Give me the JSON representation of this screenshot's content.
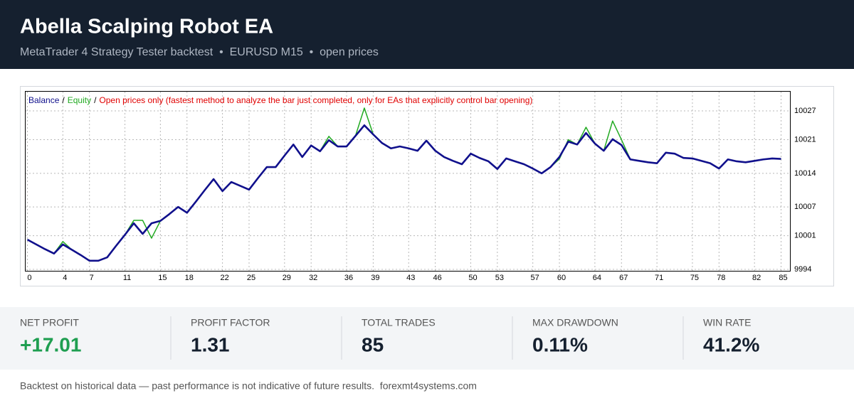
{
  "header": {
    "title": "Abella Scalping Robot EA",
    "subtitle": "MetaTrader 4 Strategy Tester backtest  •  EURUSD M15  •  open prices"
  },
  "chart_data": {
    "type": "line",
    "legend_separator": "/",
    "note": "Open prices only (fastest method to analyze the bar just completed, only for EAs that explicitly control bar opening)",
    "note_color": "#e00000",
    "x": [
      0,
      1,
      2,
      3,
      4,
      5,
      6,
      7,
      8,
      9,
      10,
      11,
      12,
      13,
      14,
      15,
      16,
      17,
      18,
      19,
      20,
      21,
      22,
      23,
      24,
      25,
      26,
      27,
      28,
      29,
      30,
      31,
      32,
      33,
      34,
      35,
      36,
      37,
      38,
      39,
      40,
      41,
      42,
      43,
      44,
      45,
      46,
      47,
      48,
      49,
      50,
      51,
      52,
      53,
      54,
      55,
      56,
      57,
      58,
      59,
      60,
      61,
      62,
      63,
      64,
      65,
      66,
      67,
      68,
      69,
      70,
      71,
      72,
      73,
      74,
      75,
      76,
      77,
      78,
      79,
      80,
      81,
      82,
      83,
      84,
      85
    ],
    "series": [
      {
        "name": "Balance",
        "color": "#10108c",
        "values": [
          10000.2,
          9999.2,
          9998.2,
          9997.3,
          9999.2,
          9998.1,
          9997.0,
          9995.8,
          9995.8,
          9996.5,
          9998.9,
          10001.2,
          10003.6,
          10001.4,
          10003.6,
          10004.1,
          10005.5,
          10007.0,
          10005.8,
          10008.1,
          10010.5,
          10012.8,
          10010.3,
          10012.2,
          10011.4,
          10010.6,
          10013.0,
          10015.3,
          10015.3,
          10017.7,
          10020.0,
          10017.4,
          10019.8,
          10018.6,
          10020.9,
          10019.6,
          10019.6,
          10021.8,
          10024.0,
          10022.1,
          10020.3,
          10019.2,
          10019.6,
          10019.2,
          10018.7,
          10020.8,
          10018.7,
          10017.4,
          10016.6,
          10015.9,
          10018.1,
          10017.2,
          10016.5,
          10014.9,
          10017.1,
          10016.5,
          10015.9,
          10015.0,
          10014.0,
          10015.3,
          10017.4,
          10020.6,
          10020.0,
          10022.4,
          10020.2,
          10018.7,
          10021.1,
          10019.9,
          10016.9,
          10016.6,
          10016.3,
          10016.1,
          10018.3,
          10018.1,
          10017.2,
          10017.1,
          10016.6,
          10016.1,
          10015.0,
          10016.9,
          10016.5,
          10016.3,
          10016.6,
          10016.9,
          10017.1,
          10017.0
        ]
      },
      {
        "name": "Equity",
        "color": "#22aa22",
        "values": [
          10000.2,
          9999.2,
          9998.2,
          9997.3,
          9999.8,
          9998.1,
          9997.0,
          9995.8,
          9995.8,
          9996.5,
          9998.9,
          10001.2,
          10004.2,
          10004.2,
          10000.5,
          10004.1,
          10005.5,
          10007.0,
          10005.8,
          10008.1,
          10010.5,
          10012.8,
          10010.3,
          10012.2,
          10011.4,
          10010.6,
          10013.0,
          10015.3,
          10015.3,
          10017.7,
          10020.0,
          10017.4,
          10019.8,
          10018.6,
          10021.7,
          10019.6,
          10019.6,
          10021.8,
          10027.6,
          10022.1,
          10020.3,
          10019.2,
          10019.6,
          10019.2,
          10018.7,
          10020.8,
          10018.7,
          10017.4,
          10016.6,
          10015.9,
          10018.1,
          10017.2,
          10016.5,
          10014.9,
          10017.1,
          10016.5,
          10015.9,
          10015.0,
          10014.0,
          10015.3,
          10017.0,
          10021.0,
          10020.0,
          10023.6,
          10020.2,
          10018.7,
          10024.9,
          10021.0,
          10016.9,
          10016.6,
          10016.3,
          10016.1,
          10018.3,
          10018.1,
          10017.2,
          10017.1,
          10016.6,
          10016.1,
          10015.0,
          10016.9,
          10016.5,
          10016.3,
          10016.6,
          10016.9,
          10017.1,
          10017.0
        ]
      }
    ],
    "xlim": [
      -0.2,
      86
    ],
    "xticks": [
      0,
      4,
      7,
      11,
      15,
      18,
      22,
      25,
      29,
      32,
      36,
      39,
      43,
      46,
      50,
      53,
      57,
      60,
      64,
      67,
      71,
      75,
      78,
      82,
      85
    ],
    "ylim": [
      9993.7,
      10031
    ],
    "yticks": [
      9994,
      10001,
      10007,
      10014,
      10021,
      10027
    ],
    "grid": true
  },
  "stats": [
    {
      "label": "NET PROFIT",
      "value": "+17.01",
      "color": "#1e9e50"
    },
    {
      "label": "PROFIT FACTOR",
      "value": "1.31"
    },
    {
      "label": "TOTAL TRADES",
      "value": "85"
    },
    {
      "label": "MAX DRAWDOWN",
      "value": "0.11%"
    },
    {
      "label": "WIN RATE",
      "value": "41.2%"
    }
  ],
  "footer": "Backtest on historical data — past performance is not indicative of future results.  forexmt4systems.com"
}
